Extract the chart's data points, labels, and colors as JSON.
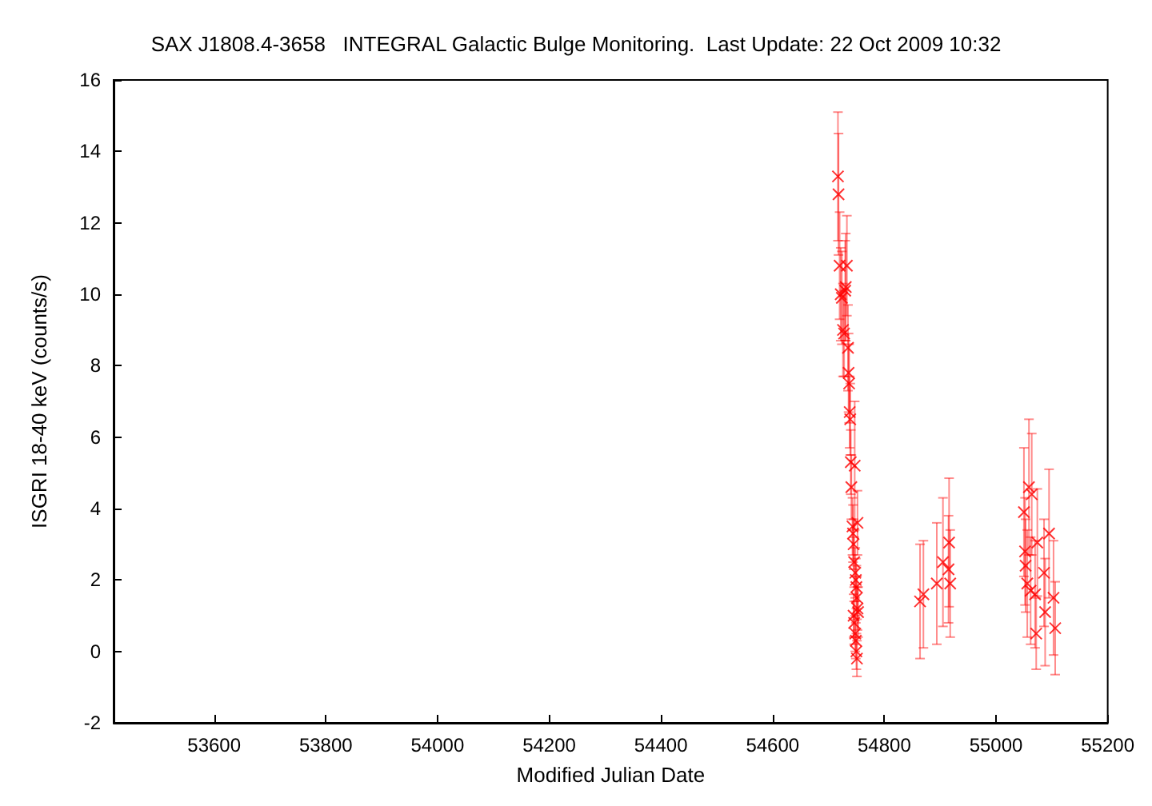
{
  "chart_data": {
    "type": "scatter",
    "title": "SAX J1808.4-3658   INTEGRAL Galactic Bulge Monitoring.  Last Update: 22 Oct 2009 10:32",
    "xlabel": "Modified Julian Date",
    "ylabel": "ISGRI 18-40 keV (counts/s)",
    "xlim": [
      53420,
      55200
    ],
    "xticks": [
      53600,
      53800,
      54000,
      54200,
      54400,
      54600,
      54800,
      55000,
      55200
    ],
    "ylim": [
      -2,
      16
    ],
    "yticks": [
      -2,
      0,
      2,
      4,
      6,
      8,
      10,
      12,
      14,
      16
    ],
    "grid": false,
    "marker": "cross",
    "series": [
      {
        "color": "#ff0000",
        "x": [
          54717,
          54718,
          54720,
          54722,
          54724,
          54726,
          54728,
          54730,
          54731,
          54733,
          54735,
          54736,
          54737,
          54738,
          54739,
          54740,
          54741,
          54743,
          54744,
          54745,
          54746,
          54747,
          54748,
          54749,
          54750,
          54751,
          54752,
          54745,
          54746,
          54748,
          54749,
          54750,
          54751,
          54752,
          54753,
          54864,
          54870,
          54894,
          54905,
          54915,
          54916,
          54918,
          55050,
          55052,
          55053,
          55056,
          55059,
          55062,
          55064,
          55070,
          55072,
          55074,
          55086,
          55088,
          55095,
          55103,
          55106
        ],
        "values": [
          13.3,
          12.8,
          10.8,
          10.0,
          9.9,
          9.0,
          8.9,
          10.1,
          10.2,
          10.8,
          8.5,
          7.8,
          7.5,
          6.7,
          6.5,
          5.3,
          4.6,
          3.5,
          3.3,
          3.0,
          2.5,
          5.2,
          2.2,
          2.0,
          1.8,
          1.5,
          1.2,
          1.0,
          0.8,
          0.5,
          0.3,
          0.0,
          -0.2,
          3.6,
          1.1,
          1.4,
          1.6,
          1.9,
          2.5,
          2.3,
          3.05,
          1.9,
          3.9,
          2.8,
          2.4,
          1.9,
          4.6,
          1.7,
          4.4,
          1.6,
          0.5,
          3.05,
          2.2,
          1.1,
          3.3,
          1.5,
          0.65
        ],
        "errors": [
          1.8,
          1.7,
          1.5,
          1.3,
          1.3,
          1.3,
          1.2,
          1.4,
          1.5,
          1.4,
          1.2,
          1.1,
          1.1,
          1.0,
          1.0,
          0.9,
          0.9,
          0.8,
          0.8,
          0.7,
          0.7,
          1.8,
          0.7,
          0.6,
          0.6,
          0.6,
          0.6,
          0.6,
          0.6,
          0.5,
          0.5,
          0.5,
          0.5,
          0.9,
          0.7,
          1.6,
          1.5,
          1.7,
          1.8,
          1.5,
          1.8,
          1.5,
          1.8,
          1.5,
          1.3,
          1.5,
          1.9,
          1.5,
          1.7,
          1.5,
          1.0,
          1.5,
          1.5,
          1.5,
          1.8,
          1.6,
          1.3
        ]
      }
    ]
  }
}
